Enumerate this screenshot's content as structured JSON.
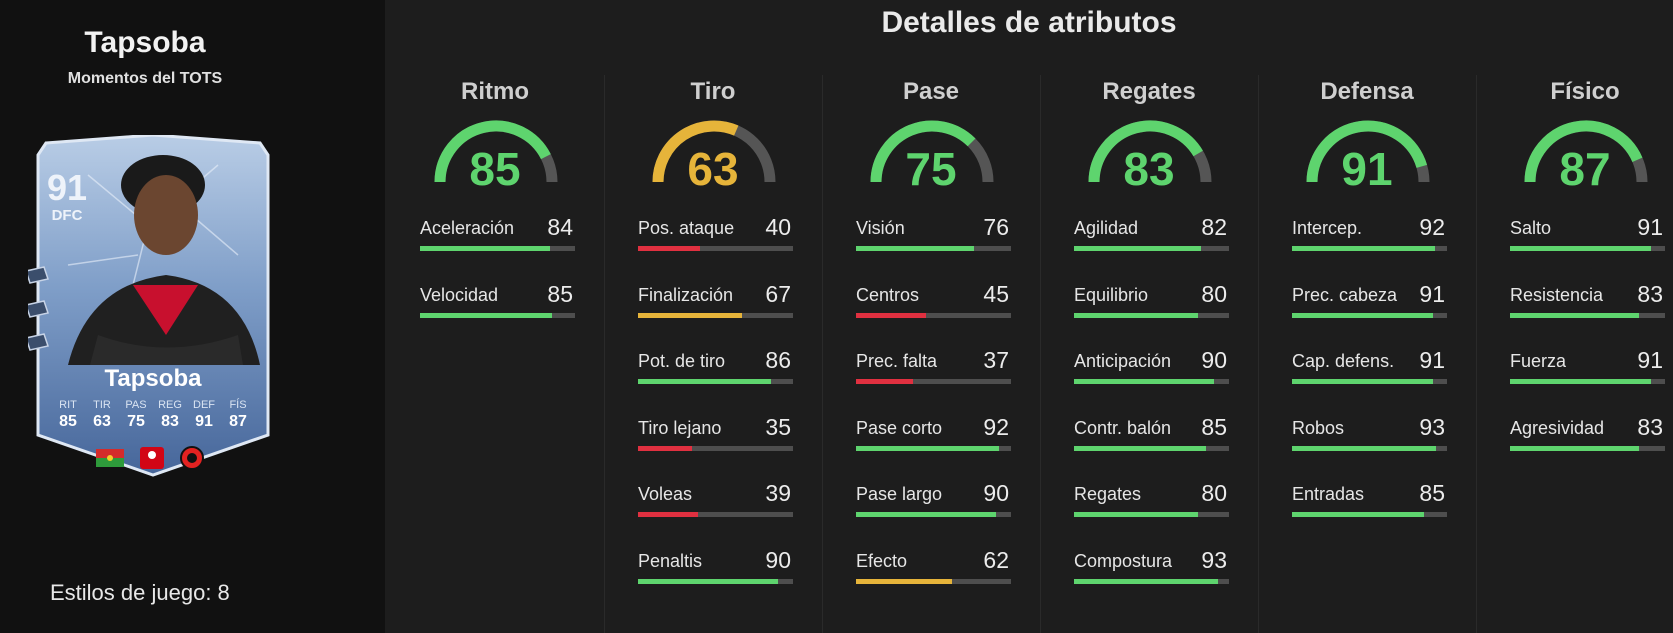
{
  "colors": {
    "green": "#5ed46e",
    "yellow": "#e6b43a",
    "red": "#e03040",
    "track": "#555555"
  },
  "player": {
    "name": "Tapsoba",
    "subtitle": "Momentos del TOTS",
    "playstyles_label": "Estilos de juego: 8"
  },
  "card": {
    "rating": "91",
    "position": "DFC",
    "name": "Tapsoba",
    "stats": [
      {
        "label": "RIT",
        "value": "85"
      },
      {
        "label": "TIR",
        "value": "63"
      },
      {
        "label": "PAS",
        "value": "75"
      },
      {
        "label": "REG",
        "value": "83"
      },
      {
        "label": "DEF",
        "value": "91"
      },
      {
        "label": "FÍS",
        "value": "87"
      }
    ],
    "icons": [
      "burkina-faso-flag-icon",
      "bundesliga-logo-icon",
      "bayer-leverkusen-crest-icon"
    ]
  },
  "title": "Detalles de atributos",
  "categories": [
    {
      "name": "Ritmo",
      "value": 85,
      "color": "#5ed46e",
      "stats": [
        {
          "label": "Aceleración",
          "value": 84,
          "color": "#5ed46e"
        },
        {
          "label": "Velocidad",
          "value": 85,
          "color": "#5ed46e"
        }
      ]
    },
    {
      "name": "Tiro",
      "value": 63,
      "color": "#e6b43a",
      "stats": [
        {
          "label": "Pos. ataque",
          "value": 40,
          "color": "#e03040"
        },
        {
          "label": "Finalización",
          "value": 67,
          "color": "#e6b43a"
        },
        {
          "label": "Pot. de tiro",
          "value": 86,
          "color": "#5ed46e"
        },
        {
          "label": "Tiro lejano",
          "value": 35,
          "color": "#e03040"
        },
        {
          "label": "Voleas",
          "value": 39,
          "color": "#e03040"
        },
        {
          "label": "Penaltis",
          "value": 90,
          "color": "#5ed46e"
        }
      ]
    },
    {
      "name": "Pase",
      "value": 75,
      "color": "#5ed46e",
      "stats": [
        {
          "label": "Visión",
          "value": 76,
          "color": "#5ed46e"
        },
        {
          "label": "Centros",
          "value": 45,
          "color": "#e03040"
        },
        {
          "label": "Prec. falta",
          "value": 37,
          "color": "#e03040"
        },
        {
          "label": "Pase corto",
          "value": 92,
          "color": "#5ed46e"
        },
        {
          "label": "Pase largo",
          "value": 90,
          "color": "#5ed46e"
        },
        {
          "label": "Efecto",
          "value": 62,
          "color": "#e6b43a"
        }
      ]
    },
    {
      "name": "Regates",
      "value": 83,
      "color": "#5ed46e",
      "stats": [
        {
          "label": "Agilidad",
          "value": 82,
          "color": "#5ed46e"
        },
        {
          "label": "Equilibrio",
          "value": 80,
          "color": "#5ed46e"
        },
        {
          "label": "Anticipación",
          "value": 90,
          "color": "#5ed46e"
        },
        {
          "label": "Contr. balón",
          "value": 85,
          "color": "#5ed46e"
        },
        {
          "label": "Regates",
          "value": 80,
          "color": "#5ed46e"
        },
        {
          "label": "Compostura",
          "value": 93,
          "color": "#5ed46e"
        }
      ]
    },
    {
      "name": "Defensa",
      "value": 91,
      "color": "#5ed46e",
      "stats": [
        {
          "label": "Intercep.",
          "value": 92,
          "color": "#5ed46e"
        },
        {
          "label": "Prec. cabeza",
          "value": 91,
          "color": "#5ed46e"
        },
        {
          "label": "Cap. defens.",
          "value": 91,
          "color": "#5ed46e"
        },
        {
          "label": "Robos",
          "value": 93,
          "color": "#5ed46e"
        },
        {
          "label": "Entradas",
          "value": 85,
          "color": "#5ed46e"
        }
      ]
    },
    {
      "name": "Físico",
      "value": 87,
      "color": "#5ed46e",
      "stats": [
        {
          "label": "Salto",
          "value": 91,
          "color": "#5ed46e"
        },
        {
          "label": "Resistencia",
          "value": 83,
          "color": "#5ed46e"
        },
        {
          "label": "Fuerza",
          "value": 91,
          "color": "#5ed46e"
        },
        {
          "label": "Agresividad",
          "value": 83,
          "color": "#5ed46e"
        }
      ]
    }
  ]
}
